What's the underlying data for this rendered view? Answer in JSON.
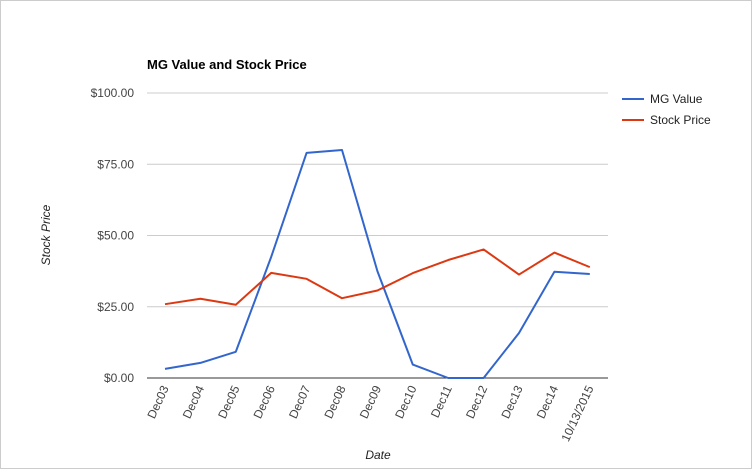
{
  "chart_data": {
    "type": "line",
    "title": "MG Value and Stock Price",
    "xlabel": "Date",
    "ylabel": "Stock Price",
    "categories": [
      "Dec03",
      "Dec04",
      "Dec05",
      "Dec06",
      "Dec07",
      "Dec08",
      "Dec09",
      "Dec10",
      "Dec11",
      "Dec12",
      "Dec13",
      "Dec14",
      "10/13/2015"
    ],
    "y_ticks": [
      "$0.00",
      "$25.00",
      "$50.00",
      "$75.00",
      "$100.00"
    ],
    "ylim": [
      0,
      100
    ],
    "grid": true,
    "legend_position": "right",
    "series": [
      {
        "name": "MG Value",
        "color": "#3366cc",
        "values": [
          3.2,
          5.3,
          9.2,
          42.5,
          79.0,
          80.0,
          37.5,
          4.7,
          0,
          0,
          15.8,
          37.3,
          36.5
        ]
      },
      {
        "name": "Stock Price",
        "color": "#dc3912",
        "values": [
          25.9,
          27.8,
          25.7,
          36.9,
          34.8,
          28.0,
          30.7,
          36.8,
          41.4,
          45.1,
          36.3,
          44.0,
          38.9
        ]
      }
    ]
  }
}
